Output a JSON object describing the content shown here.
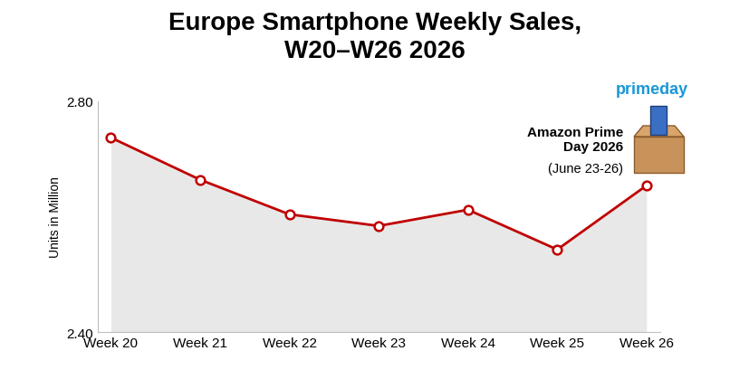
{
  "chart_data": {
    "type": "line",
    "title": "Europe Smartphone Weekly Sales,\nW20–W26 2026",
    "y_label": "Units in Million",
    "categories": [
      "Week 20",
      "Week 21",
      "Week 22",
      "Week 23",
      "Week 24",
      "Week 25",
      "Week 26"
    ],
    "values": [
      2.737,
      2.664,
      2.604,
      2.584,
      2.612,
      2.543,
      2.654
    ],
    "color": "#c00000",
    "marker": "o",
    "ylim": [
      2.4,
      2.8
    ],
    "yticks": [
      {
        "value": 2.4,
        "label": "2.40"
      },
      {
        "value": 2.8,
        "label": "2.80"
      }
    ],
    "annotations": [
      "primeday",
      "Amazon Prime\nDay 2026",
      "(June 23-26)"
    ]
  }
}
